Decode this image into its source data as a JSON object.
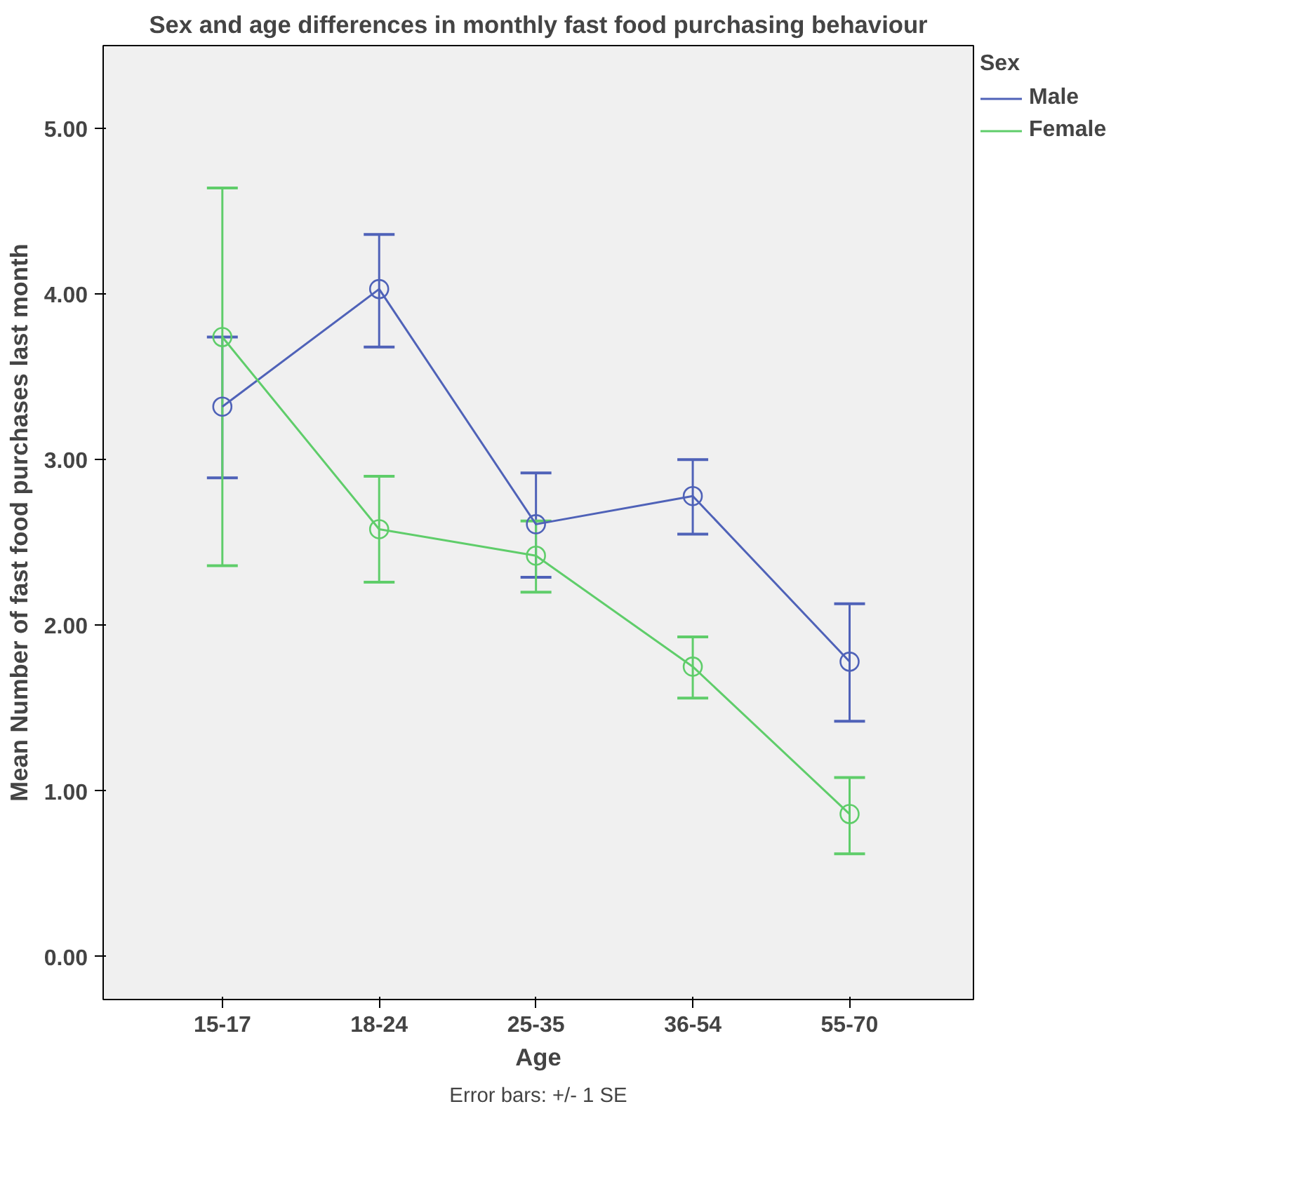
{
  "chart_data": {
    "type": "line",
    "title": "Sex and age differences in monthly fast food purchasing behaviour",
    "xlabel": "Age",
    "ylabel": "Mean Number of fast food purchases last month",
    "legend_title": "Sex",
    "categories": [
      "15-17",
      "18-24",
      "25-35",
      "36-54",
      "55-70"
    ],
    "ylim": [
      -0.26,
      5.5
    ],
    "yticks": [
      {
        "value": 0,
        "label": "0.00"
      },
      {
        "value": 1,
        "label": "1.00"
      },
      {
        "value": 2,
        "label": "2.00"
      },
      {
        "value": 3,
        "label": "3.00"
      },
      {
        "value": 4,
        "label": "4.00"
      },
      {
        "value": 5,
        "label": "5.00"
      }
    ],
    "series": [
      {
        "name": "Male",
        "color": "#4f62b8",
        "values": [
          3.32,
          4.03,
          2.61,
          2.78,
          1.78
        ],
        "errors": [
          [
            2.89,
            3.74
          ],
          [
            3.68,
            4.36
          ],
          [
            2.29,
            2.92
          ],
          [
            2.55,
            3.0
          ],
          [
            1.42,
            2.13
          ]
        ]
      },
      {
        "name": "Female",
        "color": "#5fcd6a",
        "values": [
          3.74,
          2.58,
          2.42,
          1.75,
          0.86
        ],
        "errors": [
          [
            2.36,
            4.64
          ],
          [
            2.26,
            2.9
          ],
          [
            2.2,
            2.63
          ],
          [
            1.56,
            1.93
          ],
          [
            0.62,
            1.08
          ]
        ]
      }
    ],
    "marker": "circle",
    "line_style": "solid",
    "grid": false,
    "legend": "right",
    "annotations": [
      "Error bars: +/- 1 SE"
    ]
  }
}
